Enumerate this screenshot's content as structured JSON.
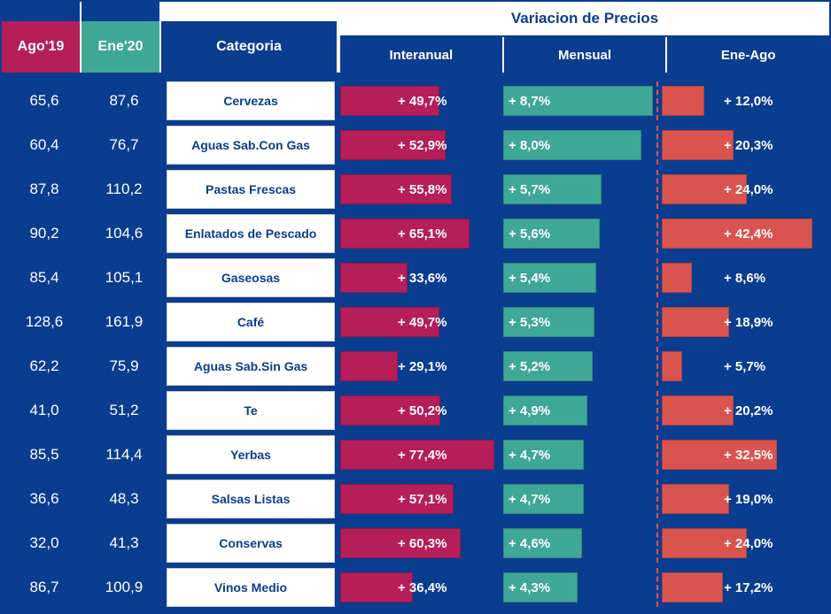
{
  "colors": {
    "blue": "#0a3d8f",
    "magenta": "#b51e58",
    "teal": "#3fa796",
    "red": "#d9534f",
    "white": "#ffffff"
  },
  "header": {
    "super_title": "Variacion de Precios",
    "ago_label": "Ago'19",
    "ene_label": "Ene'20",
    "cat_label": "Categoria",
    "inter_label": "Interanual",
    "mens_label": "Mensual",
    "eneago_label": "Ene-Ago",
    "ago_bg": "#b51e58",
    "ene_bg": "#3fa796",
    "cat_bg": "#0a3d8f"
  },
  "scales": {
    "interanual_max": 80,
    "mensual_max": 9,
    "eneago_max": 45
  },
  "rows": [
    {
      "ago": "65,6",
      "ene": "87,6",
      "cat": "Cervezas",
      "inter": 49.7,
      "inter_label": "+ 49,7%",
      "mens": 8.7,
      "mens_label": "+ 8,7%",
      "eneago": 12.0,
      "eneago_label": "+ 12,0%"
    },
    {
      "ago": "60,4",
      "ene": "76,7",
      "cat": "Aguas Sab.Con Gas",
      "inter": 52.9,
      "inter_label": "+ 52,9%",
      "mens": 8.0,
      "mens_label": "+ 8,0%",
      "eneago": 20.3,
      "eneago_label": "+ 20,3%"
    },
    {
      "ago": "87,8",
      "ene": "110,2",
      "cat": "Pastas Frescas",
      "inter": 55.8,
      "inter_label": "+ 55,8%",
      "mens": 5.7,
      "mens_label": "+ 5,7%",
      "eneago": 24.0,
      "eneago_label": "+ 24,0%"
    },
    {
      "ago": "90,2",
      "ene": "104,6",
      "cat": "Enlatados de Pescado",
      "inter": 65.1,
      "inter_label": "+ 65,1%",
      "mens": 5.6,
      "mens_label": "+ 5,6%",
      "eneago": 42.4,
      "eneago_label": "+ 42,4%"
    },
    {
      "ago": "85,4",
      "ene": "105,1",
      "cat": "Gaseosas",
      "inter": 33.6,
      "inter_label": "+ 33,6%",
      "mens": 5.4,
      "mens_label": "+ 5,4%",
      "eneago": 8.6,
      "eneago_label": "+ 8,6%"
    },
    {
      "ago": "128,6",
      "ene": "161,9",
      "cat": "Café",
      "inter": 49.7,
      "inter_label": "+ 49,7%",
      "mens": 5.3,
      "mens_label": "+ 5,3%",
      "eneago": 18.9,
      "eneago_label": "+ 18,9%"
    },
    {
      "ago": "62,2",
      "ene": "75,9",
      "cat": "Aguas Sab.Sin Gas",
      "inter": 29.1,
      "inter_label": "+ 29,1%",
      "mens": 5.2,
      "mens_label": "+ 5,2%",
      "eneago": 5.7,
      "eneago_label": "+ 5,7%"
    },
    {
      "ago": "41,0",
      "ene": "51,2",
      "cat": "Te",
      "inter": 50.2,
      "inter_label": "+ 50,2%",
      "mens": 4.9,
      "mens_label": "+ 4,9%",
      "eneago": 20.2,
      "eneago_label": "+ 20,2%"
    },
    {
      "ago": "85,5",
      "ene": "114,4",
      "cat": "Yerbas",
      "inter": 77.4,
      "inter_label": "+ 77,4%",
      "mens": 4.7,
      "mens_label": "+ 4,7%",
      "eneago": 32.5,
      "eneago_label": "+ 32,5%"
    },
    {
      "ago": "36,6",
      "ene": "48,3",
      "cat": "Salsas Listas",
      "inter": 57.1,
      "inter_label": "+ 57,1%",
      "mens": 4.7,
      "mens_label": "+ 4,7%",
      "eneago": 19.0,
      "eneago_label": "+ 19,0%"
    },
    {
      "ago": "32,0",
      "ene": "41,3",
      "cat": "Conservas",
      "inter": 60.3,
      "inter_label": "+ 60,3%",
      "mens": 4.6,
      "mens_label": "+ 4,6%",
      "eneago": 24.0,
      "eneago_label": "+ 24,0%"
    },
    {
      "ago": "86,7",
      "ene": "100,9",
      "cat": "Vinos Medio",
      "inter": 36.4,
      "inter_label": "+ 36,4%",
      "mens": 4.3,
      "mens_label": "+ 4,3%",
      "eneago": 17.2,
      "eneago_label": "+ 17,2%"
    }
  ]
}
